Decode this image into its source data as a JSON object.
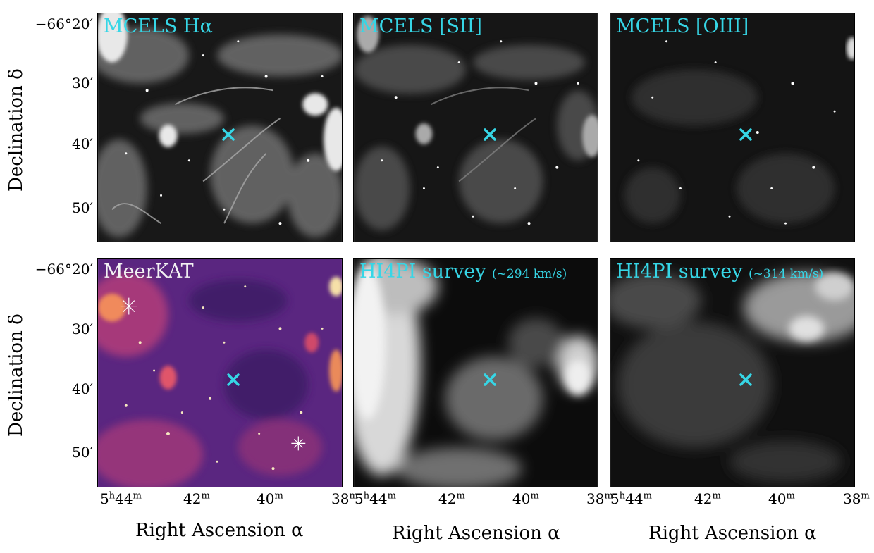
{
  "panels": [
    {
      "title": "MCELS Hα",
      "color": "cyan"
    },
    {
      "title": "MCELS [SII]",
      "color": "cyan"
    },
    {
      "title": "MCELS [OIII]",
      "color": "cyan"
    },
    {
      "title": "MeerKAT",
      "color": "white"
    },
    {
      "title": "HI4PI survey",
      "subtitle": "(~294 km/s)",
      "color": "cyan"
    },
    {
      "title": "HI4PI survey",
      "subtitle": "(~314 km/s)",
      "color": "cyan"
    }
  ],
  "axes": {
    "ylabel": "Declination δ",
    "xlabel": "Right Ascension α",
    "yticks": [
      "−66°20′",
      "30′",
      "40′",
      "50′"
    ],
    "xticks": {
      "ra_first": "5",
      "ra_first_h": "h",
      "ra_first_m": "44",
      "m": "m",
      "t42": "42",
      "t40": "40",
      "t38": "38"
    }
  },
  "colors": {
    "marker": "#36d6e6",
    "meerkat_base": "#4b1f72",
    "meerkat_hot": "#e0546a"
  }
}
